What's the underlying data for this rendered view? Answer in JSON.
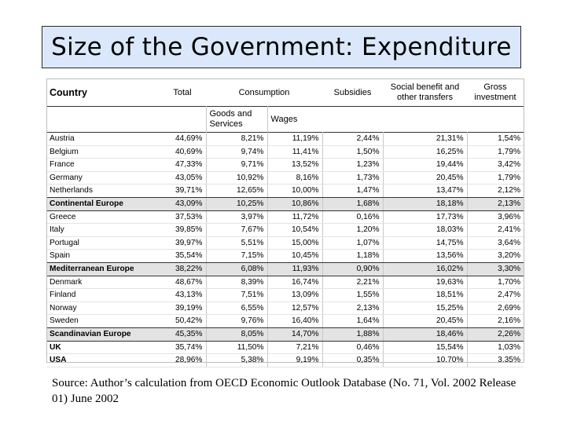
{
  "title": "Size of the Government: Expenditure",
  "table": {
    "headers": {
      "country": "Country",
      "total": "Total",
      "consumption": "Consumption",
      "subsidies": "Subsidies",
      "social_benefit": "Social benefit and other transfers",
      "gross_investment": "Gross investment",
      "goods_and_services": "Goods and Services",
      "wages": "Wages"
    },
    "rows": [
      {
        "country": "Austria",
        "total": "44,69%",
        "goods": "8,21%",
        "wages": "11,19%",
        "subsidies": "2,44%",
        "social": "21,31%",
        "investment": "1,54%"
      },
      {
        "country": "Belgium",
        "total": "40,69%",
        "goods": "9,74%",
        "wages": "11,41%",
        "subsidies": "1,50%",
        "social": "16,25%",
        "investment": "1,79%"
      },
      {
        "country": "France",
        "total": "47,33%",
        "goods": "9,71%",
        "wages": "13,52%",
        "subsidies": "1,23%",
        "social": "19,44%",
        "investment": "3,42%"
      },
      {
        "country": "Germany",
        "total": "43,05%",
        "goods": "10,92%",
        "wages": "8,16%",
        "subsidies": "1,73%",
        "social": "20,45%",
        "investment": "1,79%"
      },
      {
        "country": "Netherlands",
        "total": "39,71%",
        "goods": "12,65%",
        "wages": "10,00%",
        "subsidies": "1,47%",
        "social": "13,47%",
        "investment": "2,12%"
      },
      {
        "country": "Continental Europe",
        "total": "43,09%",
        "goods": "10,25%",
        "wages": "10,86%",
        "subsidies": "1,68%",
        "social": "18,18%",
        "investment": "2,13%",
        "group": true
      },
      {
        "country": "Greece",
        "total": "37,53%",
        "goods": "3,97%",
        "wages": "11,72%",
        "subsidies": "0,16%",
        "social": "17,73%",
        "investment": "3,96%"
      },
      {
        "country": "Italy",
        "total": "39,85%",
        "goods": "7,67%",
        "wages": "10,54%",
        "subsidies": "1,20%",
        "social": "18,03%",
        "investment": "2,41%"
      },
      {
        "country": "Portugal",
        "total": "39,97%",
        "goods": "5,51%",
        "wages": "15,00%",
        "subsidies": "1,07%",
        "social": "14,75%",
        "investment": "3,64%"
      },
      {
        "country": "Spain",
        "total": "35,54%",
        "goods": "7,15%",
        "wages": "10,45%",
        "subsidies": "1,18%",
        "social": "13,56%",
        "investment": "3,20%"
      },
      {
        "country": "Mediterranean Europe",
        "total": "38,22%",
        "goods": "6,08%",
        "wages": "11,93%",
        "subsidies": "0,90%",
        "social": "16,02%",
        "investment": "3,30%",
        "group": true
      },
      {
        "country": "Denmark",
        "total": "48,67%",
        "goods": "8,39%",
        "wages": "16,74%",
        "subsidies": "2,21%",
        "social": "19,63%",
        "investment": "1,70%"
      },
      {
        "country": "Finland",
        "total": "43,13%",
        "goods": "7,51%",
        "wages": "13,09%",
        "subsidies": "1,55%",
        "social": "18,51%",
        "investment": "2,47%"
      },
      {
        "country": "Norway",
        "total": "39,19%",
        "goods": "6,55%",
        "wages": "12,57%",
        "subsidies": "2,13%",
        "social": "15,25%",
        "investment": "2,69%"
      },
      {
        "country": "Sweden",
        "total": "50,42%",
        "goods": "9,76%",
        "wages": "16,40%",
        "subsidies": "1,64%",
        "social": "20,45%",
        "investment": "2,16%"
      },
      {
        "country": "Scandinavian Europe",
        "total": "45,35%",
        "goods": "8,05%",
        "wages": "14,70%",
        "subsidies": "1,88%",
        "social": "18,46%",
        "investment": "2,26%",
        "group": true
      },
      {
        "country": "UK",
        "total": "35,74%",
        "goods": "11,50%",
        "wages": "7,21%",
        "subsidies": "0,46%",
        "social": "15,54%",
        "investment": "1,03%",
        "bold": true
      },
      {
        "country": "USA",
        "total": "28,96%",
        "goods": "5,38%",
        "wages": "9,19%",
        "subsidies": "0,35%",
        "social": "10.70%",
        "investment": "3.35%",
        "bold": true
      }
    ]
  },
  "source": "Source: Author’s calculation from OECD Economic Outlook Database (No. 71, Vol. 2002 Release 01) June 2002"
}
